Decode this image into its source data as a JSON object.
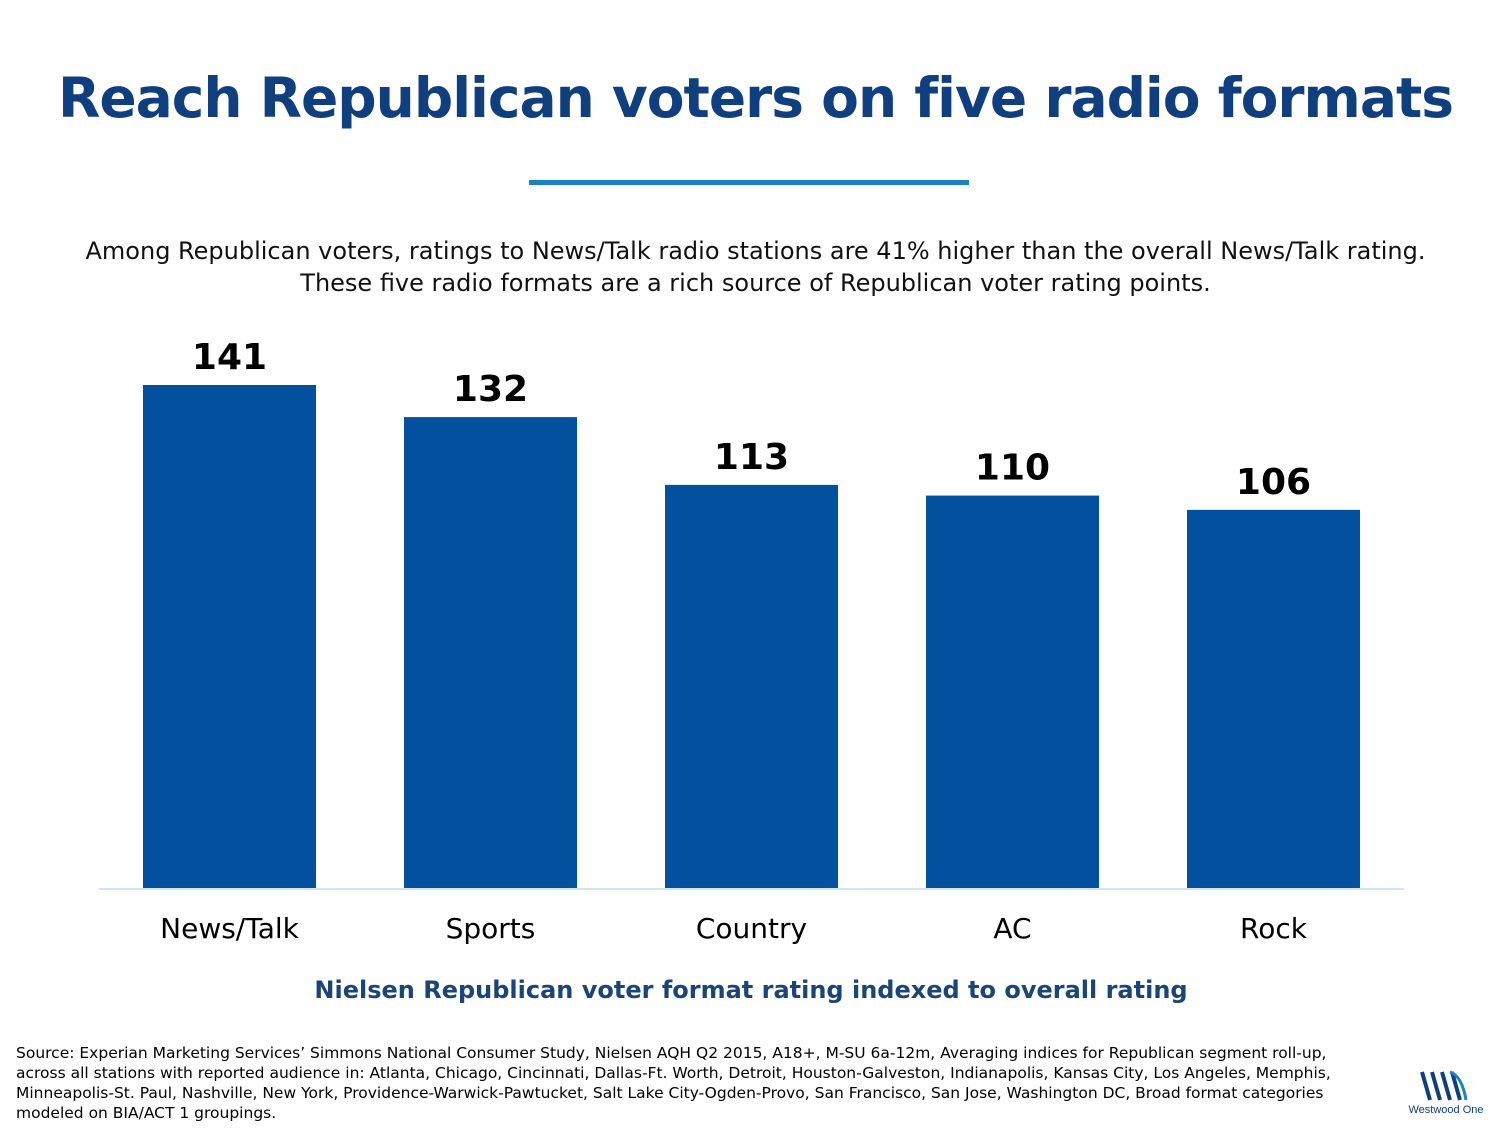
{
  "header": {
    "title": "Reach Republican voters on five radio formats",
    "subtitle_line1": "Among Republican voters, ratings to News/Talk radio stations are 41% higher than the overall News/Talk rating.",
    "subtitle_line2": "These five radio formats are a rich source of Republican voter rating points."
  },
  "chart_data": {
    "type": "bar",
    "categories": [
      "News/Talk",
      "Sports",
      "Country",
      "AC",
      "Rock"
    ],
    "values": [
      141,
      132,
      113,
      110,
      106
    ],
    "title": "",
    "xlabel": "Nielsen Republican voter format rating indexed to overall rating",
    "ylabel": "",
    "ylim": [
      0,
      141
    ],
    "data_labels": true,
    "grid": false,
    "legend": "none",
    "bar_color": "#03509e"
  },
  "footer": {
    "source": "Source: Experian Marketing Services’ Simmons National Consumer Study, Nielsen AQH Q2 2015, A18+, M-SU 6a-12m, Averaging indices for Republican segment roll-up, across all stations with reported audience in: Atlanta, Chicago, Cincinnati, Dallas-Ft. Worth, Detroit, Houston-Galveston, Indianapolis, Kansas City, Los Angeles, Memphis, Minneapolis-St. Paul, Nashville, New York, Providence-Warwick-Pawtucket, Salt Lake City-Ogden-Provo, San Francisco, San Jose, Washington DC, Broad format categories modeled on BIA/ACT 1 groupings.",
    "logo_text": "Westwood One"
  },
  "colors": {
    "title": "#0f3f7f",
    "rule": "#1a82c4",
    "bar": "#03509e",
    "caption": "#1a4579"
  }
}
